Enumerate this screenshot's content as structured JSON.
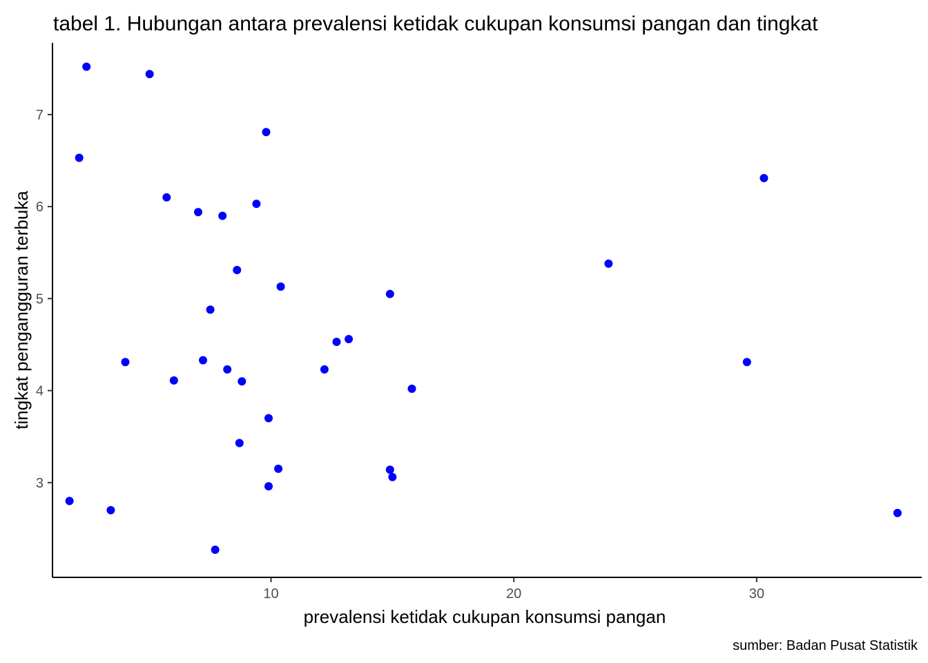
{
  "chart_data": {
    "type": "scatter",
    "title": "tabel 1. Hubungan antara prevalensi ketidak cukupan konsumsi pangan dan tingkat",
    "xlabel": "prevalensi ketidak cukupan konsumsi pangan",
    "ylabel": "tingkat pengangguran terbuka",
    "caption": "sumber: Badan Pusat Statistik",
    "xlim": [
      1.0,
      36.8
    ],
    "ylim": [
      1.97,
      7.78
    ],
    "x_ticks": [
      10,
      20,
      30
    ],
    "x_tick_labels": [
      "10",
      "20",
      "30"
    ],
    "y_ticks": [
      3,
      4,
      5,
      6,
      7
    ],
    "y_tick_labels": [
      "3",
      "4",
      "5",
      "6",
      "7"
    ],
    "grid": false,
    "point_color": "#0000ff",
    "points": [
      {
        "x": 2.4,
        "y": 7.52
      },
      {
        "x": 5.0,
        "y": 7.44
      },
      {
        "x": 9.8,
        "y": 6.81
      },
      {
        "x": 2.1,
        "y": 6.53
      },
      {
        "x": 5.7,
        "y": 6.1
      },
      {
        "x": 9.4,
        "y": 6.03
      },
      {
        "x": 7.0,
        "y": 5.94
      },
      {
        "x": 8.0,
        "y": 5.9
      },
      {
        "x": 8.6,
        "y": 5.31
      },
      {
        "x": 10.4,
        "y": 5.13
      },
      {
        "x": 14.9,
        "y": 5.05
      },
      {
        "x": 7.5,
        "y": 4.88
      },
      {
        "x": 30.3,
        "y": 6.31
      },
      {
        "x": 23.9,
        "y": 5.38
      },
      {
        "x": 13.2,
        "y": 4.56
      },
      {
        "x": 12.7,
        "y": 4.53
      },
      {
        "x": 4.0,
        "y": 4.31
      },
      {
        "x": 7.2,
        "y": 4.33
      },
      {
        "x": 8.2,
        "y": 4.23
      },
      {
        "x": 12.2,
        "y": 4.23
      },
      {
        "x": 29.6,
        "y": 4.31
      },
      {
        "x": 6.0,
        "y": 4.11
      },
      {
        "x": 8.8,
        "y": 4.1
      },
      {
        "x": 15.8,
        "y": 4.02
      },
      {
        "x": 9.9,
        "y": 3.7
      },
      {
        "x": 8.7,
        "y": 3.43
      },
      {
        "x": 10.3,
        "y": 3.15
      },
      {
        "x": 14.9,
        "y": 3.14
      },
      {
        "x": 15.0,
        "y": 3.06
      },
      {
        "x": 9.9,
        "y": 2.96
      },
      {
        "x": 1.7,
        "y": 2.8
      },
      {
        "x": 3.4,
        "y": 2.7
      },
      {
        "x": 35.8,
        "y": 2.67
      },
      {
        "x": 7.7,
        "y": 2.27
      }
    ]
  }
}
